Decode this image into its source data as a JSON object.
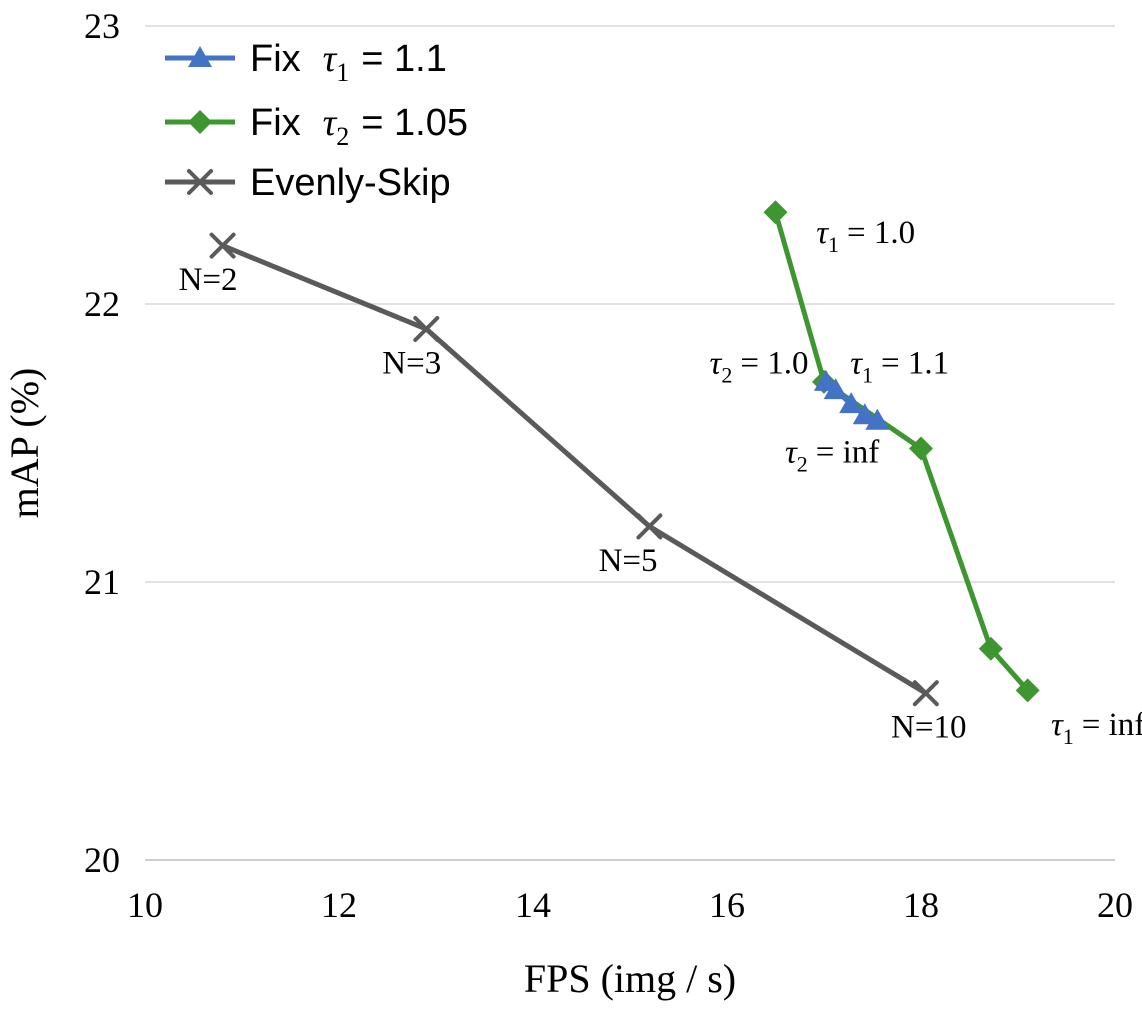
{
  "chart_data": {
    "type": "line",
    "title": "",
    "xlabel": "FPS (img / s)",
    "ylabel": "mAP (%)",
    "xlim": [
      10,
      20
    ],
    "ylim": [
      20,
      23
    ],
    "xticks": [
      "10",
      "12",
      "14",
      "16",
      "18",
      "20"
    ],
    "yticks": [
      "20",
      "21",
      "22",
      "23"
    ],
    "grid": "horizontal",
    "legend_position": "top-left",
    "series": [
      {
        "name": "Fix τ1 = 1.1",
        "legend_prefix": "Fix",
        "legend_symbol": "τ",
        "legend_sub": "1",
        "legend_value": "= 1.1",
        "color": "#4472C4",
        "marker": "triangle",
        "x": [
          17.02,
          17.12,
          17.28,
          17.42,
          17.55
        ],
        "y": [
          21.72,
          21.69,
          21.64,
          21.6,
          21.58
        ]
      },
      {
        "name": "Fix τ2 = 1.05",
        "legend_prefix": "Fix",
        "legend_symbol": "τ",
        "legend_sub": "2",
        "legend_value": "= 1.05",
        "color": "#3E9631",
        "marker": "diamond",
        "x": [
          16.5,
          17.0,
          18.0,
          18.72,
          19.1
        ],
        "y": [
          22.33,
          21.72,
          21.48,
          20.76,
          20.61
        ]
      },
      {
        "name": "Evenly-Skip",
        "legend_prefix": "Evenly-Skip",
        "color": "#5A5A5A",
        "marker": "x",
        "x": [
          10.8,
          12.9,
          15.2,
          18.05
        ],
        "y": [
          22.21,
          21.91,
          21.2,
          20.6
        ]
      }
    ],
    "annotations": [
      {
        "text": "N=2",
        "x": 10.65,
        "y": 22.05,
        "anchor": "middle"
      },
      {
        "text": "N=3",
        "x": 12.75,
        "y": 21.75,
        "anchor": "middle"
      },
      {
        "text": "N=5",
        "x": 14.98,
        "y": 21.04,
        "anchor": "middle"
      },
      {
        "text": "N=10",
        "x": 18.08,
        "y": 20.44,
        "anchor": "middle"
      },
      {
        "symbol": "τ",
        "sub": "1",
        "value": "= 1.0",
        "x": 16.92,
        "y": 22.22,
        "anchor": "start"
      },
      {
        "symbol": "τ",
        "sub": "2",
        "value": "= 1.0",
        "x": 16.84,
        "y": 21.75,
        "anchor": "end"
      },
      {
        "symbol": "τ",
        "sub": "1",
        "value": "= 1.1",
        "x": 17.27,
        "y": 21.75,
        "anchor": "start"
      },
      {
        "symbol": "τ",
        "sub": "2",
        "value": "= inf",
        "x": 17.57,
        "y": 21.43,
        "anchor": "end"
      },
      {
        "symbol": "τ",
        "sub": "1",
        "value": "= inf",
        "x": 19.34,
        "y": 20.45,
        "anchor": "start"
      }
    ]
  }
}
